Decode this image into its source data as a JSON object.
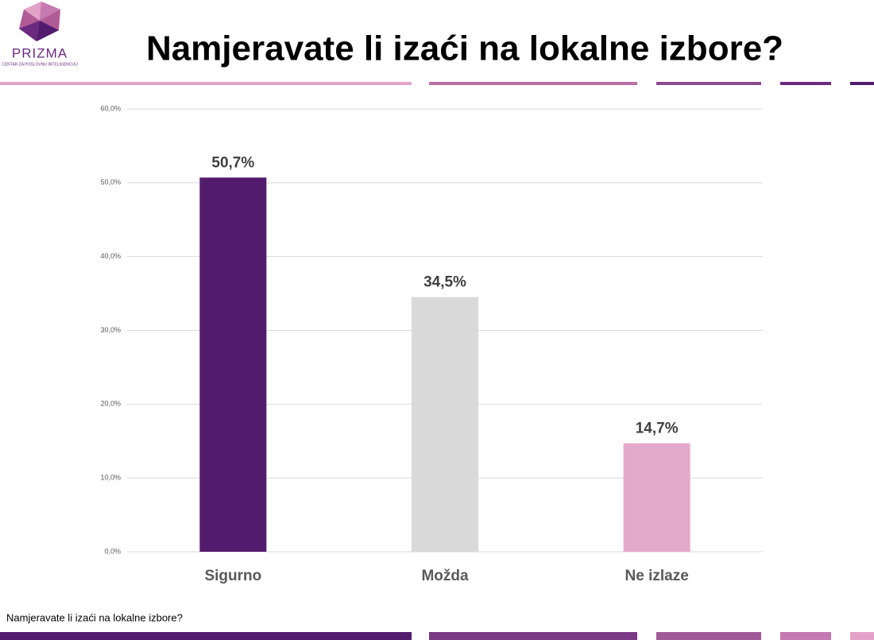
{
  "logo": {
    "name": "PRIZMA",
    "tagline": "CENTAR ZA POSLOVNU INTELIGENCIJU"
  },
  "chart_data": {
    "type": "bar",
    "title": "Namjeravate li izaći na lokalne izbore?",
    "categories": [
      "Sigurno",
      "Možda",
      "Ne izlaze"
    ],
    "values": [
      50.7,
      34.5,
      14.7
    ],
    "value_labels": [
      "50,7%",
      "34,5%",
      "14,7%"
    ],
    "colors": [
      "#521b6e",
      "#d9d9d9",
      "#e4a9cb"
    ],
    "ylim": [
      0,
      60
    ],
    "yticks": [
      {
        "value": 0,
        "label": "0,0%"
      },
      {
        "value": 10,
        "label": "10,0%"
      },
      {
        "value": 20,
        "label": "20,0%"
      },
      {
        "value": 30,
        "label": "30,0%"
      },
      {
        "value": 40,
        "label": "40,0%"
      },
      {
        "value": 50,
        "label": "50,0%"
      },
      {
        "value": 60,
        "label": "60,0%"
      }
    ],
    "grid": true
  },
  "footnote": "Namjeravate li izaći na lokalne izbore?"
}
